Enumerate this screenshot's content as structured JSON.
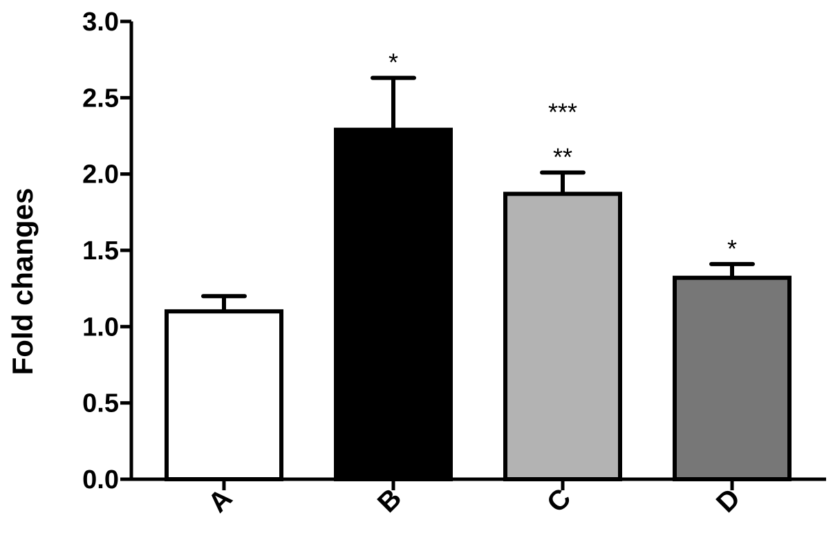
{
  "chart_data": {
    "type": "bar",
    "title": "",
    "xlabel": "",
    "ylabel": "Fold changes",
    "ylim": [
      0,
      3.0
    ],
    "yticks": [
      0.0,
      0.5,
      1.0,
      1.5,
      2.0,
      2.5,
      3.0
    ],
    "ytick_labels": [
      "0.0",
      "0.5",
      "1.0",
      "1.5",
      "2.0",
      "2.5",
      "3.0"
    ],
    "categories": [
      "A",
      "B",
      "C",
      "D"
    ],
    "values": [
      1.1,
      2.29,
      1.87,
      1.32
    ],
    "errors": [
      0.1,
      0.34,
      0.14,
      0.09
    ],
    "bar_colors": [
      "#ffffff",
      "#000000",
      "#b3b3b3",
      "#777777"
    ],
    "annotations": [
      {
        "category": "B",
        "text": "*"
      },
      {
        "category": "C",
        "text": "***"
      },
      {
        "category": "C",
        "text": "**"
      },
      {
        "category": "D",
        "text": "*"
      }
    ],
    "grid": false,
    "legend": "none"
  }
}
